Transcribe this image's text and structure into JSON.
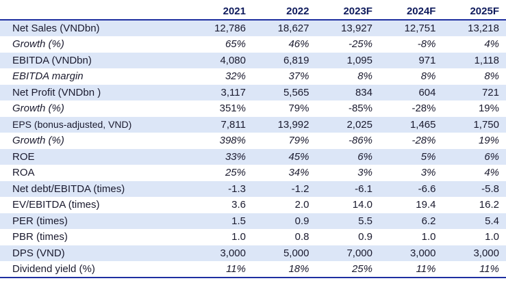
{
  "table": {
    "headers": [
      "",
      "2021",
      "2022",
      "2023F",
      "2024F",
      "2025F"
    ],
    "rows": [
      {
        "label": "Net Sales (VNDbn)",
        "values": [
          "12,786",
          "18,627",
          "13,927",
          "12,751",
          "13,218"
        ],
        "shaded": true,
        "italic": false
      },
      {
        "label": "Growth (%)",
        "values": [
          "65%",
          "46%",
          "-25%",
          "-8%",
          "4%"
        ],
        "shaded": false,
        "italic": true
      },
      {
        "label": "EBITDA (VNDbn)",
        "values": [
          "4,080",
          "6,819",
          "1,095",
          "971",
          "1,118"
        ],
        "shaded": true,
        "italic": false
      },
      {
        "label": "EBITDA margin",
        "values": [
          "32%",
          "37%",
          "8%",
          "8%",
          "8%"
        ],
        "shaded": false,
        "italic": true
      },
      {
        "label": "Net Profit (VNDbn )",
        "values": [
          "3,117",
          "5,565",
          "834",
          "604",
          "721"
        ],
        "shaded": true,
        "italic": false
      },
      {
        "label": "Growth (%)",
        "values": [
          "351%",
          "79%",
          "-85%",
          "-28%",
          "19%"
        ],
        "shaded": false,
        "italic": false,
        "label_italic": true
      },
      {
        "label": "EPS (bonus-adjusted, VND)",
        "values": [
          "7,811",
          "13,992",
          "2,025",
          "1,465",
          "1,750"
        ],
        "shaded": true,
        "italic": false,
        "small_label": true
      },
      {
        "label": "Growth (%)",
        "values": [
          "398%",
          "79%",
          "-86%",
          "-28%",
          "19%"
        ],
        "shaded": false,
        "italic": true
      },
      {
        "label": "ROE",
        "values": [
          "33%",
          "45%",
          "6%",
          "5%",
          "6%"
        ],
        "shaded": true,
        "italic": true,
        "label_normal": true
      },
      {
        "label": "ROA",
        "values": [
          "25%",
          "34%",
          "3%",
          "3%",
          "4%"
        ],
        "shaded": false,
        "italic": true,
        "label_normal": true
      },
      {
        "label": "Net debt/EBITDA (times)",
        "values": [
          "-1.3",
          "-1.2",
          "-6.1",
          "-6.6",
          "-5.8"
        ],
        "shaded": true,
        "italic": false
      },
      {
        "label": "EV/EBITDA (times)",
        "values": [
          "3.6",
          "2.0",
          "14.0",
          "19.4",
          "16.2"
        ],
        "shaded": false,
        "italic": false
      },
      {
        "label": "PER (times)",
        "values": [
          "1.5",
          "0.9",
          "5.5",
          "6.2",
          "5.4"
        ],
        "shaded": true,
        "italic": false
      },
      {
        "label": "PBR (times)",
        "values": [
          "1.0",
          "0.8",
          "0.9",
          "1.0",
          "1.0"
        ],
        "shaded": false,
        "italic": false
      },
      {
        "label": "DPS (VND)",
        "values": [
          "3,000",
          "5,000",
          "7,000",
          "3,000",
          "3,000"
        ],
        "shaded": true,
        "italic": false
      },
      {
        "label": "Dividend yield (%)",
        "values": [
          "11%",
          "18%",
          "25%",
          "11%",
          "11%"
        ],
        "shaded": false,
        "italic": true,
        "label_normal": true
      }
    ]
  }
}
